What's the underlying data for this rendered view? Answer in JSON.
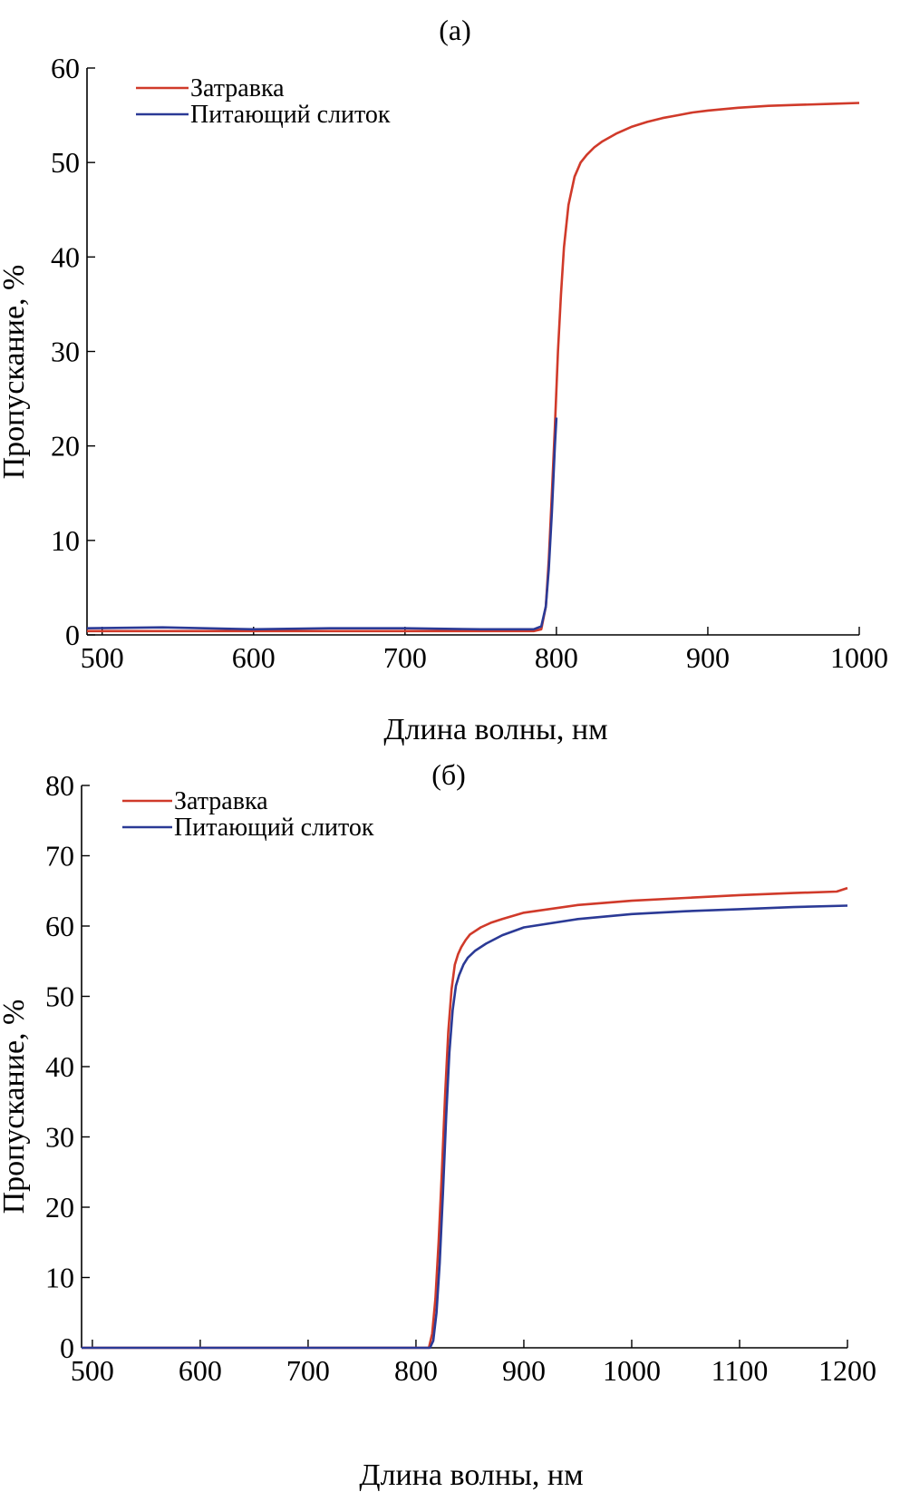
{
  "chart_data": [
    {
      "type": "line",
      "panel_label": "(a)",
      "xlabel": "Длина волны, нм",
      "ylabel": "Пропускание, %",
      "xlim": [
        490,
        1000
      ],
      "ylim": [
        0,
        60
      ],
      "xticks": [
        500,
        600,
        700,
        800,
        900,
        1000
      ],
      "yticks": [
        0,
        10,
        20,
        30,
        40,
        50,
        60
      ],
      "grid": false,
      "legend_position": "top-left",
      "series": [
        {
          "name": "Затравка",
          "color": "#d03a2a",
          "x": [
            490,
            550,
            650,
            750,
            785,
            790,
            793,
            795,
            797,
            799,
            801,
            803,
            805,
            808,
            812,
            816,
            820,
            825,
            830,
            840,
            850,
            860,
            870,
            880,
            890,
            900,
            920,
            940,
            960,
            980,
            1000
          ],
          "y": [
            0.4,
            0.4,
            0.4,
            0.4,
            0.4,
            0.6,
            3,
            8,
            15,
            22,
            30,
            36,
            41,
            45.5,
            48.5,
            50,
            50.8,
            51.6,
            52.2,
            53.1,
            53.8,
            54.3,
            54.7,
            55,
            55.3,
            55.5,
            55.8,
            56,
            56.1,
            56.2,
            56.3
          ]
        },
        {
          "name": "Питающий слиток",
          "color": "#2b3a96",
          "x": [
            490,
            540,
            600,
            650,
            700,
            750,
            785,
            790,
            793,
            795,
            797,
            799,
            800
          ],
          "y": [
            0.7,
            0.8,
            0.6,
            0.7,
            0.7,
            0.6,
            0.6,
            0.9,
            3,
            7,
            13,
            20,
            23
          ]
        }
      ]
    },
    {
      "type": "line",
      "panel_label": "(б)",
      "xlabel": "Длина волны, нм",
      "ylabel": "Пропускание, %",
      "xlim": [
        490,
        1200
      ],
      "ylim": [
        0,
        80
      ],
      "xticks": [
        500,
        600,
        700,
        800,
        900,
        1000,
        1100,
        1200
      ],
      "yticks": [
        0,
        10,
        20,
        30,
        40,
        50,
        60,
        70,
        80
      ],
      "grid": false,
      "legend_position": "top-left",
      "series": [
        {
          "name": "Затравка",
          "color": "#d03a2a",
          "x": [
            490,
            600,
            700,
            800,
            812,
            815,
            818,
            821,
            824,
            827,
            830,
            833,
            836,
            839,
            842,
            846,
            850,
            860,
            870,
            880,
            900,
            950,
            1000,
            1050,
            1100,
            1150,
            1190,
            1200
          ],
          "y": [
            0,
            0,
            0,
            0,
            0,
            2,
            7,
            15,
            25,
            36,
            45,
            51,
            54.5,
            56,
            57,
            58,
            58.8,
            59.8,
            60.5,
            61,
            61.9,
            63,
            63.6,
            64,
            64.4,
            64.7,
            64.9,
            65.4
          ]
        },
        {
          "name": "Питающий слиток",
          "color": "#2b3a96",
          "x": [
            490,
            600,
            700,
            800,
            813,
            816,
            819,
            822,
            825,
            828,
            831,
            834,
            837,
            840,
            844,
            848,
            855,
            865,
            880,
            900,
            950,
            1000,
            1050,
            1100,
            1150,
            1200
          ],
          "y": [
            0,
            0,
            0,
            0,
            0,
            1,
            5,
            12,
            22,
            33,
            42,
            48,
            51.5,
            53,
            54.5,
            55.5,
            56.5,
            57.5,
            58.7,
            59.8,
            61,
            61.7,
            62.1,
            62.4,
            62.7,
            62.9
          ]
        }
      ]
    }
  ]
}
